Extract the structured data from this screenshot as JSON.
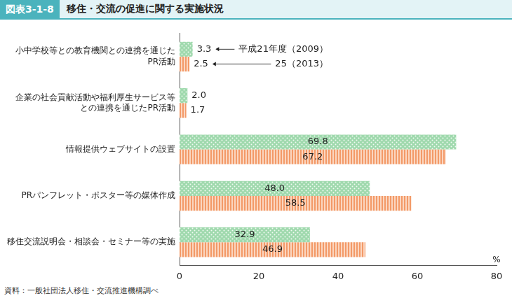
{
  "chart_data": {
    "type": "bar",
    "orientation": "horizontal",
    "title": "移住・交流の促進に関する実施状況",
    "annotations": [
      "図表3-1-8",
      "資料：一般社団法人移住・交流推進機構調べ"
    ],
    "categories": [
      [
        "小中学校等との教育機関との連携を通じた",
        "PR活動"
      ],
      [
        "企業の社会貢献活動や福利厚生サービス等",
        "との連携を通じたPR活動"
      ],
      [
        "情報提供ウェブサイトの設置"
      ],
      [
        "PRパンフレット・ポスター等の媒体作成"
      ],
      [
        "移住交流説明会・相談会・セミナー等の実施"
      ]
    ],
    "series": [
      {
        "name": "平成21年度（2009）",
        "color": "#9fd9ad",
        "values": [
          3.3,
          2.0,
          69.8,
          48.0,
          32.9
        ],
        "value_labels": [
          "3.3",
          "2.0",
          "69.8",
          "48.0",
          "32.9"
        ]
      },
      {
        "name": "25（2013）",
        "color": "#f39a68",
        "values": [
          2.5,
          1.7,
          67.2,
          58.5,
          46.9
        ],
        "value_labels": [
          "2.5",
          "1.7",
          "67.2",
          "58.5",
          "46.9"
        ]
      }
    ],
    "xlabel": "%",
    "xlim": [
      0,
      80
    ],
    "xticks": [
      0,
      20,
      40,
      60,
      80
    ],
    "grid": false,
    "data_labels": true
  }
}
